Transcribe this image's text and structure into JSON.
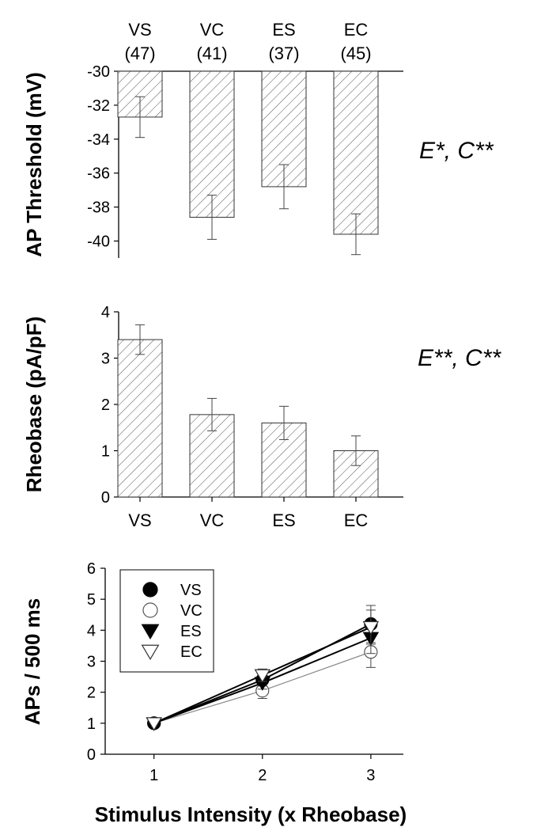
{
  "chart_data": [
    {
      "type": "bar",
      "ylabel": "AP Threshold (mV)",
      "ylim": [
        -41,
        -30
      ],
      "yticks": [
        -30,
        -32,
        -34,
        -36,
        -38,
        -40
      ],
      "categories": [
        "VS",
        "VC",
        "ES",
        "EC"
      ],
      "group_sizes": [
        "(47)",
        "(41)",
        "(37)",
        "(45)"
      ],
      "values": [
        -32.7,
        -38.6,
        -36.8,
        -39.6
      ],
      "errors": [
        1.2,
        1.3,
        1.3,
        1.2
      ],
      "statistics": "E*, C**"
    },
    {
      "type": "bar",
      "ylabel": "Rheobase (pA/pF)",
      "ylim": [
        0,
        4
      ],
      "yticks": [
        0,
        1,
        2,
        3,
        4
      ],
      "categories": [
        "VS",
        "VC",
        "ES",
        "EC"
      ],
      "values": [
        3.4,
        1.78,
        1.6,
        1.0
      ],
      "errors": [
        0.32,
        0.35,
        0.36,
        0.32
      ],
      "statistics": "E**, C**"
    },
    {
      "type": "line",
      "ylabel": "APs / 500 ms",
      "xlabel": "Stimulus Intensity (x Rheobase)",
      "x": [
        1,
        2,
        3
      ],
      "xlim": [
        0.55,
        3.3
      ],
      "ylim": [
        0,
        6
      ],
      "yticks": [
        0,
        1,
        2,
        3,
        4,
        5,
        6
      ],
      "xticks": [
        1,
        2,
        3
      ],
      "legend_position": "top-left",
      "series": [
        {
          "name": "VS",
          "marker": "filled-circle",
          "values": [
            1.0,
            2.4,
            4.2
          ],
          "errors": [
            0.0,
            0.2,
            0.6
          ]
        },
        {
          "name": "VC",
          "marker": "open-circle",
          "values": [
            1.0,
            2.05,
            3.3
          ],
          "errors": [
            0.0,
            0.25,
            0.5
          ]
        },
        {
          "name": "ES",
          "marker": "filled-triangle-down",
          "values": [
            1.0,
            2.3,
            3.75
          ],
          "errors": [
            0.0,
            0.2,
            0.5
          ]
        },
        {
          "name": "EC",
          "marker": "open-triangle-down",
          "values": [
            1.0,
            2.55,
            4.1
          ],
          "errors": [
            0.0,
            0.2,
            0.55
          ]
        }
      ]
    }
  ]
}
